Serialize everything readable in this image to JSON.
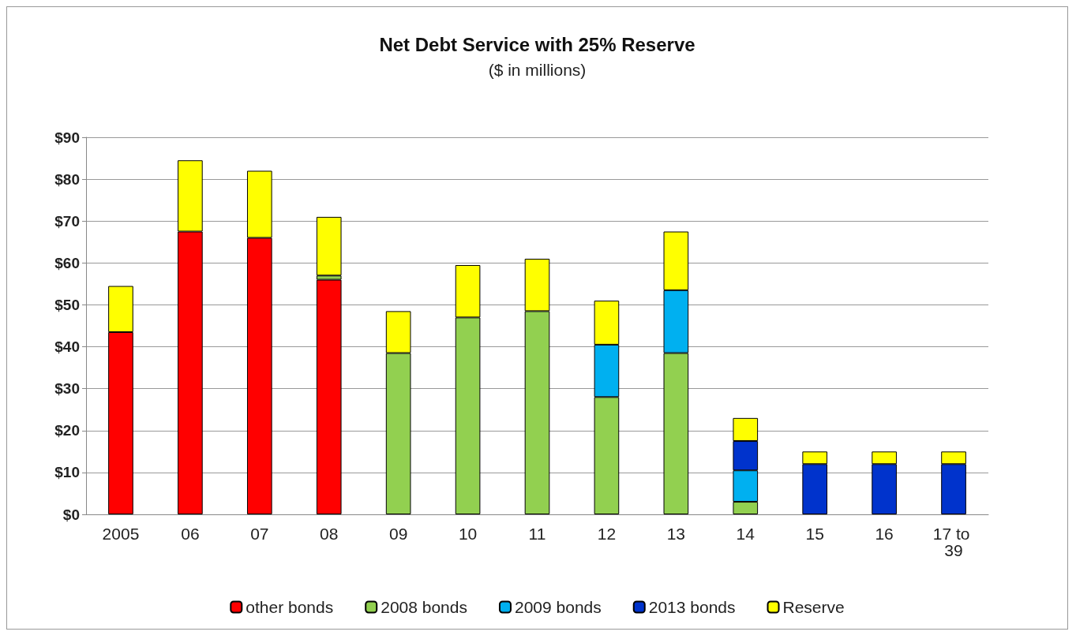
{
  "chart_data": {
    "type": "bar",
    "title": "Net Debt Service with 25% Reserve",
    "subtitle": "($ in millions)",
    "categories": [
      "2005",
      "06",
      "07",
      "08",
      "09",
      "10",
      "11",
      "12",
      "13",
      "14",
      "15",
      "16",
      "17 to 39"
    ],
    "stacked": true,
    "series": [
      {
        "name": "other bonds",
        "color": "#ff0000",
        "values": [
          43.5,
          67.5,
          66,
          56,
          null,
          null,
          null,
          null,
          null,
          null,
          null,
          null,
          null
        ]
      },
      {
        "name": "2008 bonds",
        "color": "#92d050",
        "values": [
          null,
          null,
          null,
          1,
          38.5,
          47,
          48.5,
          28,
          38.5,
          3,
          null,
          null,
          null
        ]
      },
      {
        "name": "2009 bonds",
        "color": "#00b0f0",
        "values": [
          null,
          null,
          null,
          null,
          null,
          null,
          null,
          12.5,
          15,
          7.5,
          null,
          null,
          null
        ]
      },
      {
        "name": "2013 bonds",
        "color": "#0033cc",
        "values": [
          null,
          null,
          null,
          null,
          null,
          null,
          null,
          null,
          null,
          7,
          12,
          12,
          12
        ]
      },
      {
        "name": "Reserve",
        "color": "#ffff00",
        "values": [
          11,
          17,
          16,
          14,
          10,
          12.5,
          12.5,
          10.5,
          14,
          5.5,
          3,
          3,
          3
        ]
      }
    ],
    "ylim": [
      0,
      90
    ],
    "yticks": [
      {
        "value": 0,
        "label": "$0"
      },
      {
        "value": 10,
        "label": "$10"
      },
      {
        "value": 20,
        "label": "$20"
      },
      {
        "value": 30,
        "label": "$30"
      },
      {
        "value": 40,
        "label": "$40"
      },
      {
        "value": 50,
        "label": "$50"
      },
      {
        "value": 60,
        "label": "$60"
      },
      {
        "value": 70,
        "label": "$70"
      },
      {
        "value": 80,
        "label": "$80"
      },
      {
        "value": 90,
        "label": "$90"
      }
    ],
    "grid": "y",
    "legend": "bottom"
  }
}
